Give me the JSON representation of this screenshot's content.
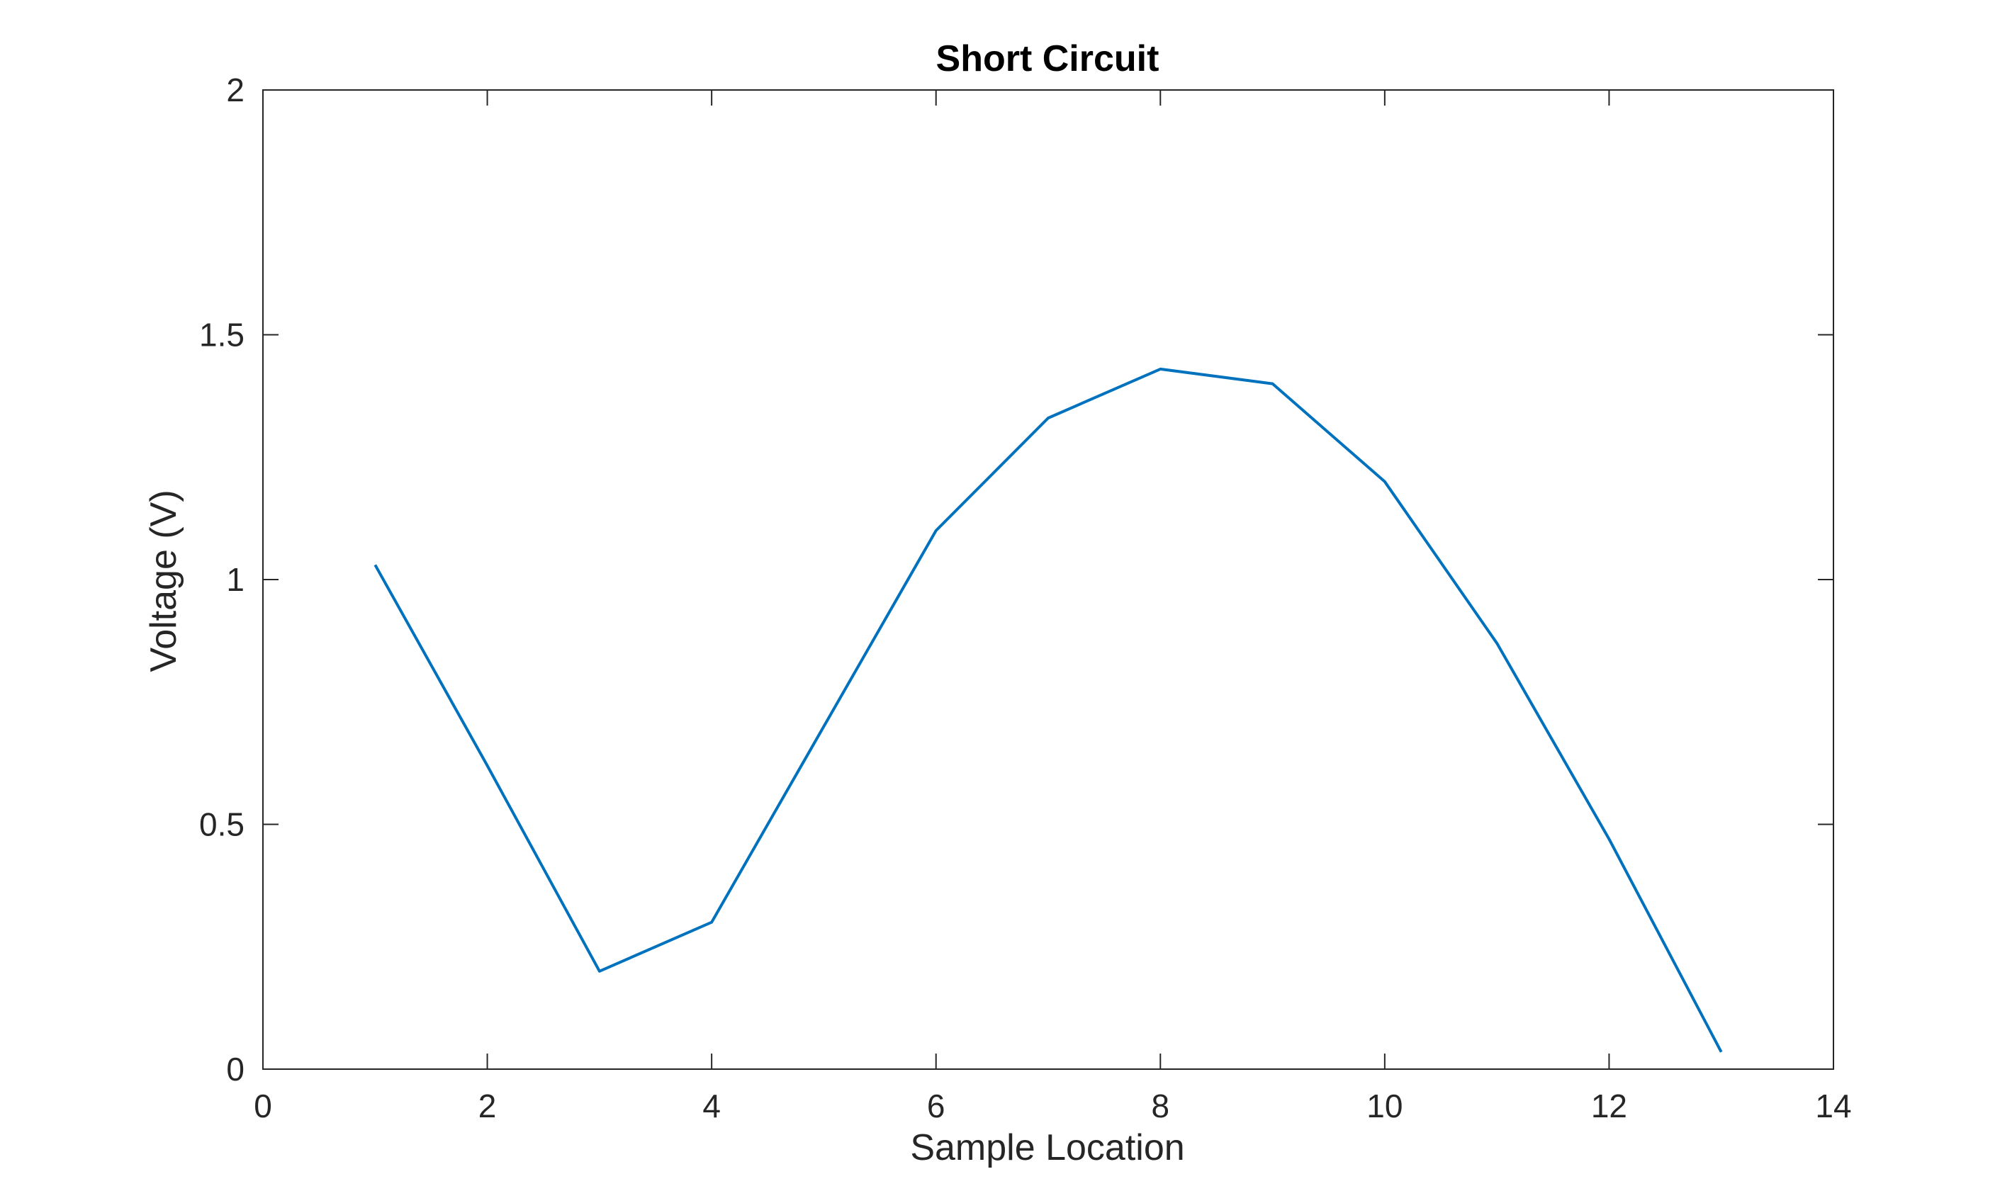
{
  "chart_data": {
    "type": "line",
    "title": "Short Circuit",
    "xlabel": "Sample Location",
    "ylabel": "Voltage (V)",
    "xlim": [
      0,
      14
    ],
    "ylim": [
      0,
      2
    ],
    "xticks": [
      0,
      2,
      4,
      6,
      8,
      10,
      12,
      14
    ],
    "xtick_labels": [
      "0",
      "2",
      "4",
      "6",
      "8",
      "10",
      "12",
      "14"
    ],
    "yticks": [
      0,
      0.5,
      1,
      1.5,
      2
    ],
    "ytick_labels": [
      "0",
      "0.5",
      "1",
      "1.5",
      "2"
    ],
    "grid": false,
    "series": [
      {
        "color": "#0072BD",
        "x": [
          1,
          2,
          3,
          4,
          5,
          6,
          7,
          8,
          9,
          10,
          11,
          12,
          13
        ],
        "y": [
          1.03,
          0.62,
          0.2,
          0.3,
          0.7,
          1.1,
          1.33,
          1.43,
          1.4,
          1.2,
          0.87,
          0.47,
          0.035
        ]
      }
    ]
  }
}
